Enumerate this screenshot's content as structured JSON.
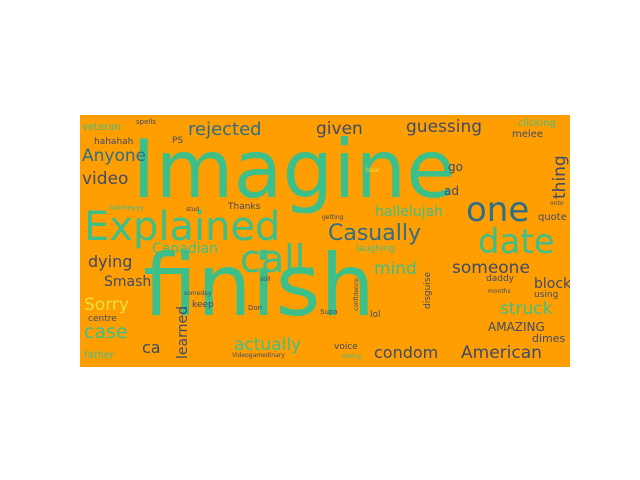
{
  "cloud": {
    "background": "#ff9e00",
    "words": [
      {
        "id": "w-imagine",
        "text": "Imagine",
        "color": "#3dbf8a"
      },
      {
        "id": "w-finish",
        "text": "finish",
        "color": "#3dbf8a"
      },
      {
        "id": "w-explained",
        "text": "Explained",
        "color": "#3dbf8a"
      },
      {
        "id": "w-call",
        "text": "call.",
        "color": "#3dbf8a"
      },
      {
        "id": "w-one",
        "text": "one",
        "color": "#2e6e86"
      },
      {
        "id": "w-date",
        "text": "date",
        "color": "#3dbf8a"
      },
      {
        "id": "w-casually",
        "text": "Casually",
        "color": "#2e6e86"
      },
      {
        "id": "w-rejected",
        "text": "rejected",
        "color": "#2e6e86"
      },
      {
        "id": "w-given",
        "text": "given",
        "color": "#3d4b6b"
      },
      {
        "id": "w-guessing",
        "text": "guessing",
        "color": "#3d4b6b"
      },
      {
        "id": "w-anyone",
        "text": "Anyone",
        "color": "#2e6e86"
      },
      {
        "id": "w-video",
        "text": "video",
        "color": "#3d4b6b"
      },
      {
        "id": "w-thing",
        "text": "thing",
        "color": "#3d4b6b"
      },
      {
        "id": "w-hallelujah",
        "text": "hallelujah",
        "color": "#3dbf8a"
      },
      {
        "id": "w-canadian",
        "text": "Canadian",
        "color": "#3dbf8a"
      },
      {
        "id": "w-dying",
        "text": "dying",
        "color": "#3d4b6b"
      },
      {
        "id": "w-mind",
        "text": "mind",
        "color": "#3dbf8a"
      },
      {
        "id": "w-someone",
        "text": "someone",
        "color": "#3d4b6b"
      },
      {
        "id": "w-smash",
        "text": "Smash",
        "color": "#3d4b6b"
      },
      {
        "id": "w-sorry",
        "text": "Sorry",
        "color": "#e9e13a"
      },
      {
        "id": "w-case",
        "text": "case",
        "color": "#3dbf8a"
      },
      {
        "id": "w-struck",
        "text": "struck",
        "color": "#3dbf8a"
      },
      {
        "id": "w-block",
        "text": "block",
        "color": "#3d4b6b"
      },
      {
        "id": "w-learned",
        "text": "learned",
        "color": "#3d4b6b"
      },
      {
        "id": "w-ca",
        "text": "ca",
        "color": "#3d4b6b"
      },
      {
        "id": "w-actually",
        "text": "actually",
        "color": "#3dbf8a"
      },
      {
        "id": "w-condom",
        "text": "condom",
        "color": "#3d4b6b"
      },
      {
        "id": "w-american",
        "text": "American",
        "color": "#3d4b6b"
      },
      {
        "id": "w-amazing",
        "text": "AMAZING",
        "color": "#3d4b6b"
      },
      {
        "id": "w-dimes",
        "text": "dimes",
        "color": "#3d4b6b"
      },
      {
        "id": "w-veteran",
        "text": "veteran",
        "color": "#3dbf8a"
      },
      {
        "id": "w-spells",
        "text": "spells",
        "color": "#3d4b6b"
      },
      {
        "id": "w-hahahah",
        "text": "hahahah",
        "color": "#3d4b6b"
      },
      {
        "id": "w-ps",
        "text": "PS",
        "color": "#3d4b6b"
      },
      {
        "id": "w-thanks",
        "text": "Thanks",
        "color": "#3d4b6b"
      },
      {
        "id": "w-hahheyyy",
        "text": "hahheyyy",
        "color": "#3dbf8a"
      },
      {
        "id": "w-stud",
        "text": "stud",
        "color": "#3d4b6b"
      },
      {
        "id": "w-go",
        "text": "go",
        "color": "#3d4b6b"
      },
      {
        "id": "w-ad",
        "text": "ad",
        "color": "#3d4b6b"
      },
      {
        "id": "w-melee",
        "text": "melee",
        "color": "#3d4b6b"
      },
      {
        "id": "w-quote",
        "text": "quote",
        "color": "#3d4b6b"
      },
      {
        "id": "w-onto",
        "text": "onto",
        "color": "#3d4b6b"
      },
      {
        "id": "w-hear",
        "text": "hear",
        "color": "#e9e13a"
      },
      {
        "id": "w-getting",
        "text": "getting",
        "color": "#3d4b6b"
      },
      {
        "id": "w-laughing",
        "text": "laughing",
        "color": "#3dbf8a"
      },
      {
        "id": "w-daddy",
        "text": "daddy",
        "color": "#3d4b6b"
      },
      {
        "id": "w-using",
        "text": "using",
        "color": "#3d4b6b"
      },
      {
        "id": "w-months",
        "text": "months",
        "color": "#3d4b6b"
      },
      {
        "id": "w-disguise",
        "text": "disguise",
        "color": "#3d4b6b"
      },
      {
        "id": "w-confidence",
        "text": "confidence",
        "color": "#3d4b6b"
      },
      {
        "id": "w-keep",
        "text": "keep",
        "color": "#3d4b6b"
      },
      {
        "id": "w-don",
        "text": "Don",
        "color": "#3d4b6b"
      },
      {
        "id": "w-supa",
        "text": "Supa",
        "color": "#3d4b6b"
      },
      {
        "id": "w-lol",
        "text": "lol",
        "color": "#3d4b6b"
      },
      {
        "id": "w-voice",
        "text": "voice",
        "color": "#3d4b6b"
      },
      {
        "id": "w-centre",
        "text": "centre",
        "color": "#3d4b6b"
      },
      {
        "id": "w-someday",
        "text": "someday",
        "color": "#3d4b6b"
      },
      {
        "id": "w-still",
        "text": "still",
        "color": "#3d4b6b"
      },
      {
        "id": "w-videogamedinary",
        "text": "Videogamedinary",
        "color": "#3d4b6b"
      },
      {
        "id": "w-dating",
        "text": "dating",
        "color": "#3dbf8a"
      },
      {
        "id": "w-father",
        "text": "father",
        "color": "#3dbf8a"
      },
      {
        "id": "w-clicking",
        "text": "clicking",
        "color": "#3dbf8a"
      }
    ]
  }
}
